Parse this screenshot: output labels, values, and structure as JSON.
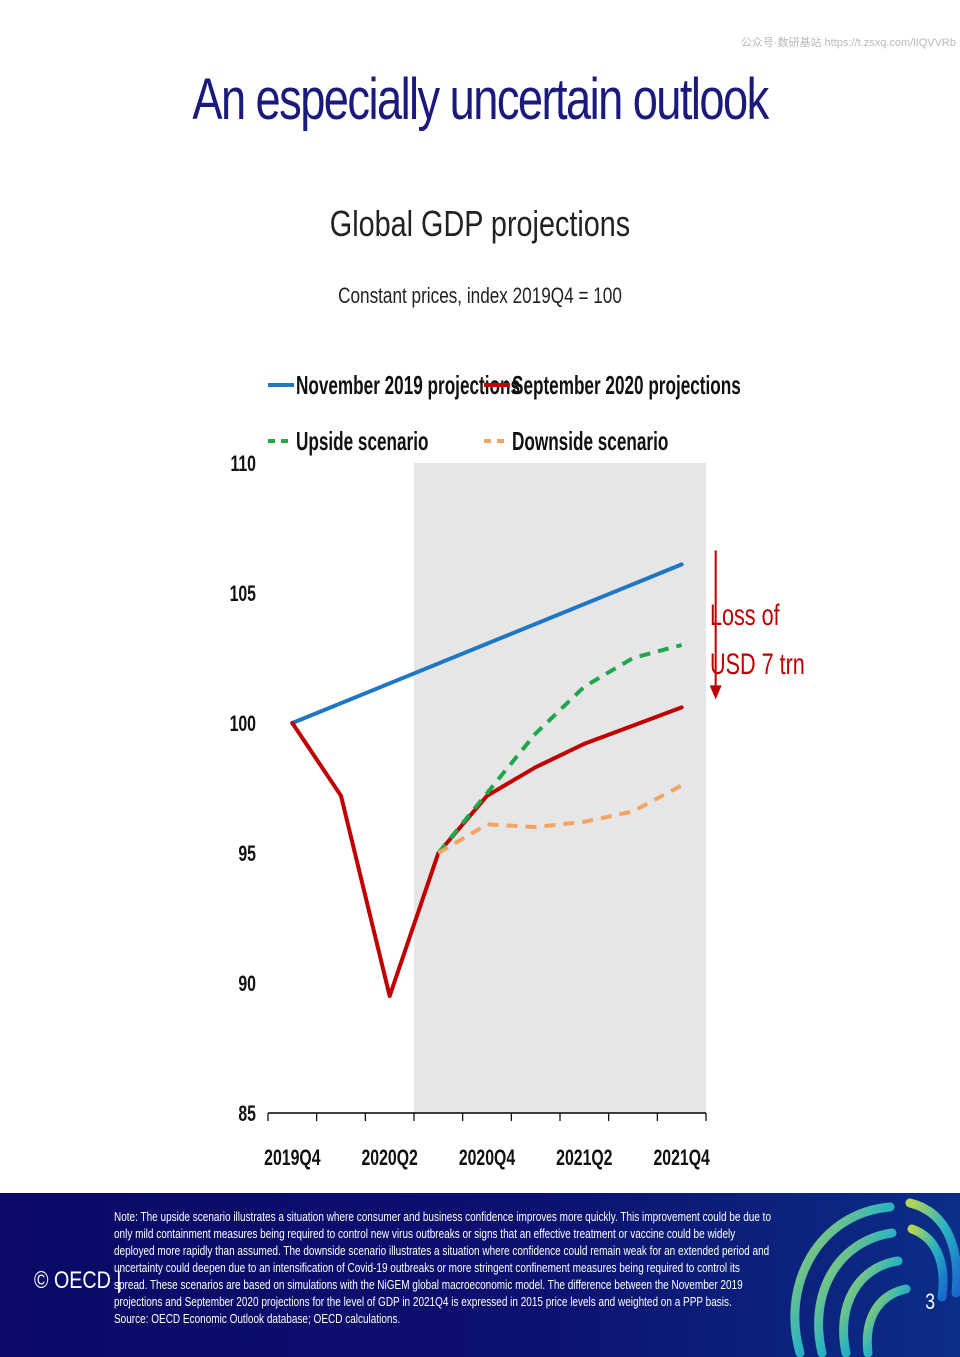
{
  "header": {
    "watermark": "公众号·数研基站 https://t.zsxq.com/lIQVVRb",
    "title": "An especially uncertain outlook"
  },
  "chart_data": {
    "type": "line",
    "title": "Global GDP projections",
    "subtitle": "Constant prices, index 2019Q4 = 100",
    "x": [
      "2019Q4",
      "2020Q1",
      "2020Q2",
      "2020Q3",
      "2020Q4",
      "2021Q1",
      "2021Q2",
      "2021Q3",
      "2021Q4"
    ],
    "x_tick_labels": [
      "2019Q4",
      "2020Q2",
      "2020Q4",
      "2021Q2",
      "2021Q4"
    ],
    "ylim": [
      85,
      110
    ],
    "y_ticks": [
      85,
      90,
      95,
      100,
      105,
      110
    ],
    "y_tick_labels": [
      "85",
      "90",
      "95",
      "100",
      "105",
      "110"
    ],
    "shaded_region": {
      "from": "2020Q3",
      "to": "2021Q4",
      "color": "#e6e6e6"
    },
    "legend_placement": "top",
    "series": [
      {
        "name": "November 2019 projections",
        "color": "#1f77c4",
        "style": "solid",
        "x": [
          "2019Q4",
          "2021Q4"
        ],
        "values": [
          100,
          106.1
        ]
      },
      {
        "name": "September 2020 projections",
        "color": "#c00000",
        "style": "solid",
        "x": [
          "2019Q4",
          "2020Q1",
          "2020Q2",
          "2020Q3",
          "2020Q4",
          "2021Q1",
          "2021Q2",
          "2021Q3",
          "2021Q4"
        ],
        "values": [
          100,
          97.2,
          89.5,
          95.0,
          97.2,
          98.3,
          99.2,
          99.9,
          100.6
        ]
      },
      {
        "name": "Upside scenario",
        "color": "#1ea84a",
        "style": "dashed",
        "x": [
          "2020Q3",
          "2020Q4",
          "2021Q1",
          "2021Q2",
          "2021Q3",
          "2021Q4"
        ],
        "values": [
          95.0,
          97.3,
          99.6,
          101.4,
          102.5,
          103.0
        ]
      },
      {
        "name": "Downside scenario",
        "color": "#f4a460",
        "style": "dashed",
        "x": [
          "2020Q3",
          "2020Q4",
          "2021Q1",
          "2021Q2",
          "2021Q3",
          "2021Q4"
        ],
        "values": [
          95.0,
          96.1,
          96.0,
          96.2,
          96.6,
          97.6
        ]
      }
    ],
    "annotation": {
      "text_line1": "Loss of",
      "text_line2": "USD 7 trn",
      "color": "#c00000",
      "from_value": 106.1,
      "to_value": 100.6,
      "at": "2021Q4"
    }
  },
  "footer": {
    "logo": "© OECD |",
    "note": "Note: The upside scenario illustrates a situation where consumer and business confidence improves more quickly. This improvement could be due to only mild containment measures being required to control new virus outbreaks or signs that an effective treatment or vaccine could be widely deployed more rapidly than assumed. The downside scenario illustrates a situation where confidence could remain weak for an extended period and uncertainty could deepen due to an intensification of Covid-19 outbreaks or more stringent confinement measures being required to control its spread. These scenarios are based on simulations with the NiGEM global macroeconomic model. The difference between the November 2019 projections and September 2020 projections for the level of GDP in 2021Q4 is expressed in 2015 price levels and weighted on a PPP basis.",
    "source": "Source: OECD Economic Outlook database; OECD calculations.",
    "page_number": "3"
  }
}
